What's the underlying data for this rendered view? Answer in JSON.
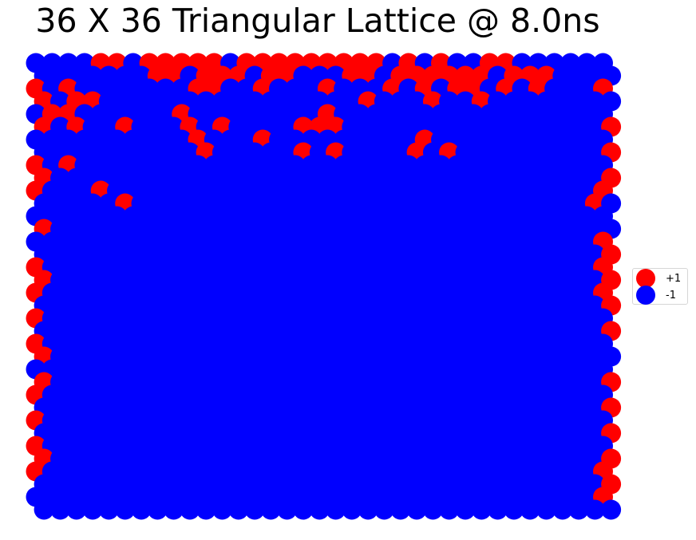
{
  "chart_data": {
    "type": "scatter",
    "title": "36 X 36 Triangular Lattice @ 8.0ns",
    "xlabel": "",
    "ylabel": "",
    "lattice_rows": 36,
    "lattice_cols": 36,
    "grid": false,
    "axes_visible": false,
    "legend_position": "center-right",
    "legend": [
      {
        "label": "+1",
        "color": "#ff0000"
      },
      {
        "label": "-1",
        "color": "#0000ff"
      }
    ],
    "spins": [
      "bbbbrrbrrrrrbrrrrrrrrrbrbrbbrrbbbbbb",
      "bbbbbbbrrbrrrbrrbbbrrbrrrrrrbrrrbbbb",
      "rbrbbbbbbbrrbbrbbbrbbbrbrbrrbrbrbbbr",
      "rbrrbbbbbbbbbbbbbbbbrbbbrbbrbbbbbbbb",
      "brrbbbbbbrbbbbbbbbrbbbbbbbbbbbbbbbbb",
      "rbrbbrbbbrbrbbbbrrrbbbbbbbbbbbbbbbbr",
      "bbbbbbbbbbrbbbrbbbbbbbbbrbbbbbbbbbbb",
      "bbbbbbbbbbrbbbbbrbrbbbbrbrbbbbbbbbbr",
      "rbrbbbbbbbbbbbbbbbbbbbbbbbbbbbbbbbbb",
      "rbbbbbbbbbbbbbbbbbbbbbbbbbbbbbbbbbbr",
      "rbbbrbbbbbbbbbbbbbbbbbbbbbbbbbbbbbbr",
      "bbbbbrbbbbbbbbbbbbbbbbbbbbbbbbbbbbrb",
      "bbbbbbbbbbbbbbbbbbbbbbbbbbbbbbbbbbbb",
      "rbbbbbbbbbbbbbbbbbbbbbbbbbbbbbbbbbbb",
      "bbbbbbbbbbbbbbbbbbbbbbbbbbbbbbbbbbbr",
      "bbbbbbbbbbbbbbbbbbbbbbbbbbbbbbbbbbbr",
      "rbbbbbbbbbbbbbbbbbbbbbbbbbbbbbbbbbbr",
      "rbbbbbbbbbbbbbbbbbbbbbbbbbbbbbbbbbbr",
      "rbbbbbbbbbbbbbbbbbbbbbbbbbbbbbbbbbbr",
      "bbbbbbbbbbbbbbbbbbbbbbbbbbbbbbbbbbbr",
      "rbbbbbbbbbbbbbbbbbbbbbbbbbbbbbbbbbbb",
      "bbbbbbbbbbbbbbbbbbbbbbbbbbbbbbbbbbbr",
      "rbbbbbbbbbbbbbbbbbbbbbbbbbbbbbbbbbbb",
      "rbbbbbbbbbbbbbbbbbbbbbbbbbbbbbbbbbbb",
      "bbbbbbbbbbbbbbbbbbbbbbbbbbbbbbbbbbbb",
      "rbbbbbbbbbbbbbbbbbbbbbbbbbbbbbbbbbbr",
      "rbbbbbbbbbbbbbbbbbbbbbbbbbbbbbbbbbbb",
      "bbbbbbbbbbbbbbbbbbbbbbbbbbbbbbbbbbbr",
      "rbbbbbbbbbbbbbbbbbbbbbbbbbbbbbbbbbbb",
      "bbbbbbbbbbbbbbbbbbbbbbbbbbbbbbbbbbbr",
      "rbbbbbbbbbbbbbbbbbbbbbbbbbbbbbbbbbbb",
      "rbbbbbbbbbbbbbbbbbbbbbbbbbbbbbbbbbbr",
      "rbbbbbbbbbbbbbbbbbbbbbbbbbbbbbbbbbbr",
      "bbbbbbbbbbbbbbbbbbbbbbbbbbbbbbbbbbbr",
      "bbbbbbbbbbbbbbbbbbbbbbbbbbbbbbbbbbbr",
      "bbbbbbbbbbbbbbbbbbbbbbbbbbbbbbbbbbbb"
    ],
    "spins_legend": {
      "r": 1,
      "b": -1
    }
  }
}
